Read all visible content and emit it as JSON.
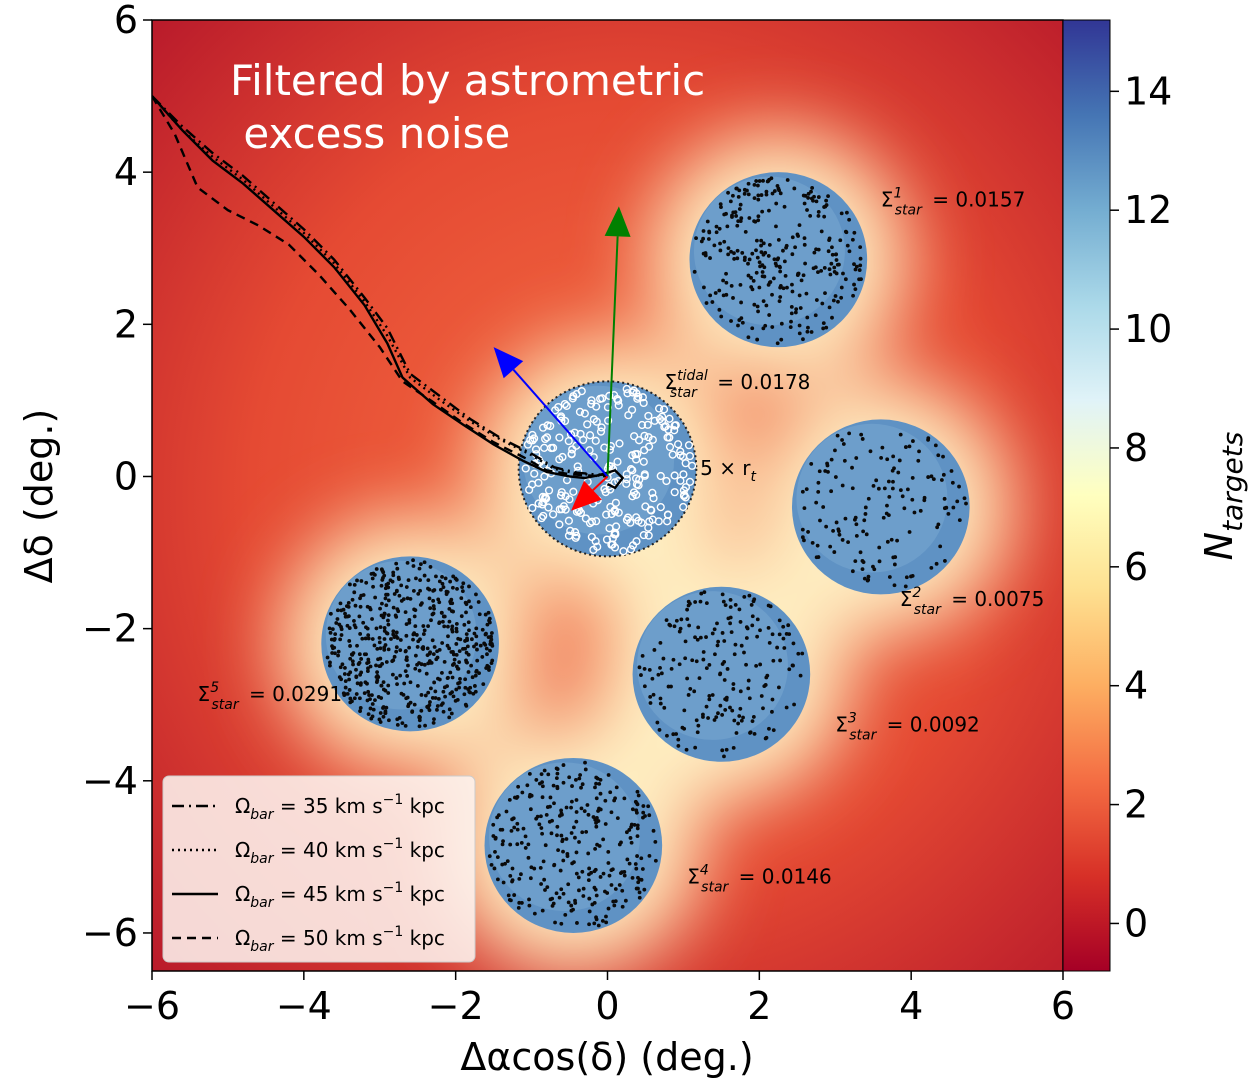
{
  "chart_data": {
    "type": "scatter",
    "title_lines": [
      "Filtered by astrometric",
      " excess noise"
    ],
    "xlabel": "Δαcos(δ) (deg.)",
    "ylabel": "Δδ (deg.)",
    "xlim": [
      -6,
      6
    ],
    "ylim": [
      -6.5,
      6
    ],
    "xticks": [
      -6,
      -4,
      -2,
      0,
      2,
      4,
      6
    ],
    "yticks": [
      -6,
      -4,
      -2,
      0,
      2,
      4,
      6
    ],
    "colorbar": {
      "label": "N_targets",
      "range": [
        -0.8,
        15.2
      ],
      "ticks": [
        0,
        2,
        4,
        6,
        8,
        10,
        12,
        14
      ],
      "colormap": "RdYlBu",
      "colors": [
        "#a50026",
        "#d73027",
        "#f46d43",
        "#fdae61",
        "#fee090",
        "#ffffbf",
        "#e0f3f8",
        "#abd9e9",
        "#74add1",
        "#4575b4",
        "#313695"
      ]
    },
    "fields": [
      {
        "id": "tidal",
        "label": "Σ",
        "sup": "tidal",
        "sub": "star",
        "value": "= 0.0178",
        "center": [
          0,
          0.1
        ],
        "radius_x": 1.17,
        "radius_y": 1.15,
        "extra_label": "5 × r",
        "extra_sub": "t",
        "n_points": 260,
        "point_style": "open-white"
      },
      {
        "id": "1",
        "label": "Σ",
        "sup": "1",
        "sub": "star",
        "value": "= 0.0157",
        "center": [
          2.25,
          2.85
        ],
        "radius_x": 1.17,
        "radius_y": 1.15,
        "n_points": 300,
        "point_style": "black-dot"
      },
      {
        "id": "2",
        "label": "Σ",
        "sup": "2",
        "sub": "star",
        "value": "= 0.0075",
        "center": [
          3.6,
          -0.4
        ],
        "radius_x": 1.17,
        "radius_y": 1.15,
        "n_points": 150,
        "point_style": "black-dot"
      },
      {
        "id": "3",
        "label": "Σ",
        "sup": "3",
        "sub": "star",
        "value": "= 0.0092",
        "center": [
          1.5,
          -2.6
        ],
        "radius_x": 1.17,
        "radius_y": 1.15,
        "n_points": 200,
        "point_style": "black-dot"
      },
      {
        "id": "4",
        "label": "Σ",
        "sup": "4",
        "sub": "star",
        "value": "= 0.0146",
        "center": [
          -0.45,
          -4.85
        ],
        "radius_x": 1.17,
        "radius_y": 1.15,
        "n_points": 300,
        "point_style": "black-dot"
      },
      {
        "id": "5",
        "label": "Σ",
        "sup": "5",
        "sub": "star",
        "value": "= 0.0291",
        "center": [
          -2.6,
          -2.2
        ],
        "radius_x": 1.17,
        "radius_y": 1.15,
        "n_points": 560,
        "point_style": "black-dot"
      }
    ],
    "field_label_positions": {
      "tidal": [
        0.75,
        1.15
      ],
      "1": [
        3.6,
        3.55
      ],
      "2": [
        3.85,
        -1.7
      ],
      "3": [
        3.0,
        -3.35
      ],
      "4": [
        1.05,
        -5.35
      ],
      "5": [
        -5.4,
        -2.95
      ]
    },
    "arrows": [
      {
        "name": "green-arrow",
        "color": "#008000",
        "from": [
          0,
          0
        ],
        "to": [
          0.15,
          3.55
        ]
      },
      {
        "name": "blue-arrow",
        "color": "#0000ff",
        "from": [
          0,
          0
        ],
        "to": [
          -1.5,
          1.7
        ]
      },
      {
        "name": "red-arrow",
        "color": "#ff0000",
        "from": [
          0,
          0
        ],
        "to": [
          -0.48,
          -0.45
        ]
      }
    ],
    "series": [
      {
        "name": "Ωbar = 35 km s⁻¹ kpc",
        "style": "dashdot",
        "x": [
          -6.0,
          -5.6,
          -5.2,
          -4.8,
          -4.4,
          -4.0,
          -3.6,
          -3.2,
          -2.9,
          -2.6,
          -2.2,
          -1.8,
          -1.4,
          -1.0,
          -0.7,
          -0.4,
          -0.2,
          0.0
        ],
        "y": [
          5.0,
          4.6,
          4.25,
          3.95,
          3.6,
          3.25,
          2.85,
          2.35,
          1.95,
          1.35,
          1.05,
          0.75,
          0.5,
          0.3,
          0.12,
          0.05,
          0.03,
          0.02
        ]
      },
      {
        "name": "Ωbar = 40 km s⁻¹ kpc",
        "style": "dotted",
        "x": [
          -6.0,
          -5.6,
          -5.2,
          -4.8,
          -4.4,
          -4.0,
          -3.6,
          -3.2,
          -2.9,
          -2.6,
          -2.2,
          -1.8,
          -1.4,
          -1.0,
          -0.7,
          -0.4,
          -0.2,
          0.0
        ],
        "y": [
          5.0,
          4.55,
          4.2,
          3.9,
          3.55,
          3.2,
          2.8,
          2.3,
          1.85,
          1.3,
          1.0,
          0.72,
          0.48,
          0.28,
          0.1,
          0.04,
          0.02,
          0.0
        ]
      },
      {
        "name": "Ωbar = 45 km s⁻¹ kpc",
        "style": "solid",
        "x": [
          -6.0,
          -5.6,
          -5.2,
          -4.8,
          -4.4,
          -4.0,
          -3.6,
          -3.2,
          -2.9,
          -2.7,
          -2.3,
          -1.9,
          -1.5,
          -1.1,
          -0.8,
          -0.5,
          -0.3,
          -0.1,
          0.1,
          0.2,
          0.1,
          0.0
        ],
        "y": [
          5.0,
          4.55,
          4.15,
          3.85,
          3.5,
          3.15,
          2.75,
          2.25,
          1.75,
          1.3,
          0.95,
          0.68,
          0.42,
          0.2,
          0.06,
          0.0,
          -0.02,
          0.02,
          0.08,
          -0.02,
          -0.15,
          -0.1
        ]
      },
      {
        "name": "Ωbar = 50 km s⁻¹ kpc",
        "style": "dashed",
        "x": [
          -6.0,
          -5.7,
          -5.4,
          -5.0,
          -4.6,
          -4.2,
          -3.8,
          -3.4,
          -3.0,
          -2.7,
          -2.3,
          -1.9,
          -1.5,
          -1.1,
          -0.8,
          -0.5,
          -0.2,
          0.0
        ],
        "y": [
          5.0,
          4.5,
          3.8,
          3.5,
          3.3,
          3.05,
          2.65,
          2.2,
          1.7,
          1.25,
          0.98,
          0.7,
          0.45,
          0.25,
          0.08,
          0.03,
          0.01,
          0.0
        ]
      }
    ],
    "legend": {
      "placement": "lower-left",
      "entries": [
        {
          "label": "Ω",
          "sub": "bar",
          "rest": " = 35 km s",
          "sup": "−1",
          "tail": " kpc",
          "style": "dashdot"
        },
        {
          "label": "Ω",
          "sub": "bar",
          "rest": " = 40 km s",
          "sup": "−1",
          "tail": " kpc",
          "style": "dotted"
        },
        {
          "label": "Ω",
          "sub": "bar",
          "rest": " = 45 km s",
          "sup": "−1",
          "tail": " kpc",
          "style": "solid"
        },
        {
          "label": "Ω",
          "sub": "bar",
          "rest": " = 50 km s",
          "sup": "−1",
          "tail": " kpc",
          "style": "dashed"
        }
      ]
    }
  }
}
